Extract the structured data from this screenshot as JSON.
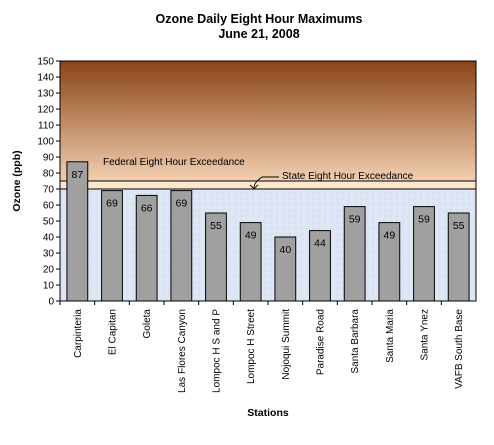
{
  "chart_data": {
    "type": "bar",
    "title": "Ozone Daily  Eight Hour Maximums",
    "subtitle": "June 21, 2008",
    "xlabel": "Stations",
    "ylabel": "Ozone (ppb)",
    "ylim": [
      0,
      150
    ],
    "yticks": [
      0,
      10,
      20,
      30,
      40,
      50,
      60,
      70,
      80,
      90,
      100,
      110,
      120,
      130,
      140,
      150
    ],
    "categories": [
      "Carpinteria",
      "El Capitan",
      "Goleta",
      "Las Flores Canyon",
      "Lompoc H S and P",
      "Lompoc H Street",
      "Nojoqui Summit",
      "Paradise Road",
      "Santa Barbara",
      "Santa Maria",
      "Santa Ynez",
      "VAFB South Base"
    ],
    "values": [
      87,
      69,
      66,
      69,
      55,
      49,
      40,
      44,
      59,
      49,
      59,
      55
    ],
    "thresholds": [
      {
        "label": "Federal Eight Hour Exceedance",
        "value": 75
      },
      {
        "label": "State Eight Hour Exceedance",
        "value": 70
      }
    ],
    "grid": false,
    "legend": "none",
    "colors": {
      "bar_fill": "#a0a0a0",
      "bar_stroke": "#000000",
      "bg_low": "#dde6f4",
      "bg_high_top": "#8a4416",
      "bg_high_bottom": "#f2cfb0",
      "state_band": "#fde8cf"
    }
  }
}
